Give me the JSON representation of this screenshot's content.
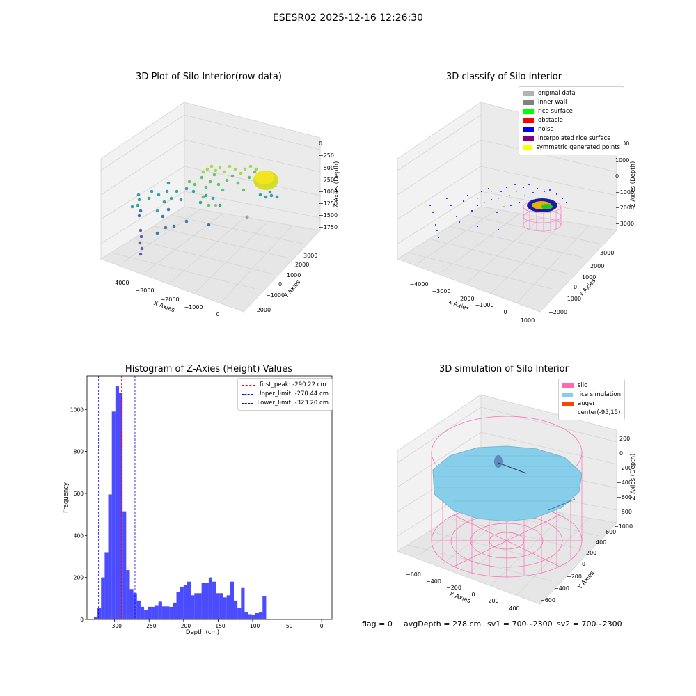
{
  "figure": {
    "suptitle": "ESESR02 2025-12-16 12:26:30"
  },
  "panels": {
    "raw": {
      "title": "3D Plot of Silo Interior(row data)",
      "xlabel": "X Axies",
      "ylabel": "Y Axies",
      "zlabel": "Z Axies (Depth)",
      "xticks": [
        "−4000",
        "−3000",
        "−2000",
        "−1000",
        "0"
      ],
      "yticks": [
        "−2000",
        "−1000",
        "0",
        "1000",
        "2000",
        "3000"
      ],
      "zticks": [
        "0",
        "−250",
        "−500",
        "−750",
        "−1000",
        "−1250",
        "−1500",
        "−1750"
      ]
    },
    "classify": {
      "title": "3D classify of Silo Interior",
      "xlabel": "X Axies",
      "ylabel": "Y Axies",
      "zlabel": "Z Axies (Depth)",
      "xticks": [
        "−4000",
        "−3000",
        "−2000",
        "−1000",
        "0",
        "1000"
      ],
      "yticks": [
        "−2000",
        "−1000",
        "0",
        "1000",
        "2000",
        "3000"
      ],
      "zticks": [
        "2000",
        "1000",
        "0",
        "−1000",
        "−2000",
        "−3000"
      ],
      "legend": [
        {
          "label": "original data",
          "color": "#b3b3b3"
        },
        {
          "label": "inner wall",
          "color": "#808080"
        },
        {
          "label": "rice surface",
          "color": "#00ff00"
        },
        {
          "label": "obstacle",
          "color": "#ff0000"
        },
        {
          "label": "noise",
          "color": "#0000ff"
        },
        {
          "label": "interpolated rice surface",
          "color": "#800080"
        },
        {
          "label": "symmetric generated points",
          "color": "#ffff00"
        }
      ]
    },
    "simulation": {
      "title": "3D simulation of Silo Interior",
      "xlabel": "X Axies",
      "ylabel": "Y Axies",
      "zlabel": "Z Axies (Depth)",
      "xticks": [
        "−600",
        "−400",
        "−200",
        "0",
        "200",
        "400"
      ],
      "yticks": [
        "−600",
        "−400",
        "−200",
        "0",
        "200",
        "400",
        "600"
      ],
      "zticks": [
        "200",
        "0",
        "−200",
        "−400",
        "−600",
        "−800",
        "−1000"
      ],
      "legend": [
        {
          "label": "silo",
          "color": "#ff69b4"
        },
        {
          "label": "rice simulation",
          "color": "#87ceeb"
        },
        {
          "label": "auger",
          "color": "#ff4500"
        },
        {
          "label": "center(-95,15)",
          "color": ""
        }
      ],
      "status": {
        "flag": "flag = 0",
        "avg_depth": "avgDepth = 278 cm",
        "sv1": "sv1 = 700~2300",
        "sv2": "sv2 = 700~2300"
      }
    }
  },
  "chart_data": {
    "type": "bar",
    "title": "Histogram of Z-Axies (Height) Values",
    "xlabel": "Depth (cm)",
    "ylabel": "Frequency",
    "xlim": [
      -340,
      15
    ],
    "ylim": [
      0,
      1160
    ],
    "xticks": [
      -300,
      -250,
      -200,
      -150,
      -100,
      -50,
      0
    ],
    "xtick_labels": [
      "−300",
      "−250",
      "−200",
      "−150",
      "−100",
      "−50",
      "0"
    ],
    "yticks": [
      0,
      200,
      400,
      600,
      800,
      1000
    ],
    "bar_color": "#0000ff",
    "bin_start": -330,
    "bin_width": 5.2,
    "values": [
      12,
      55,
      200,
      320,
      595,
      990,
      1110,
      1080,
      515,
      235,
      145,
      125,
      90,
      60,
      45,
      60,
      60,
      68,
      85,
      62,
      62,
      60,
      80,
      130,
      155,
      165,
      180,
      115,
      125,
      125,
      175,
      175,
      200,
      180,
      125,
      125,
      105,
      115,
      180,
      90,
      55,
      150,
      35,
      25,
      20,
      30,
      35,
      110
    ],
    "reference_lines": [
      {
        "label": "first_peak: -290.22 cm",
        "x": -290.22,
        "color": "#ff0000"
      },
      {
        "label": "Upper_limit: -270.44 cm",
        "x": -270.44,
        "color": "#0000ff"
      },
      {
        "label": "Lower_limit: -323.20 cm",
        "x": -323.2,
        "color": "#0000ff"
      }
    ]
  }
}
